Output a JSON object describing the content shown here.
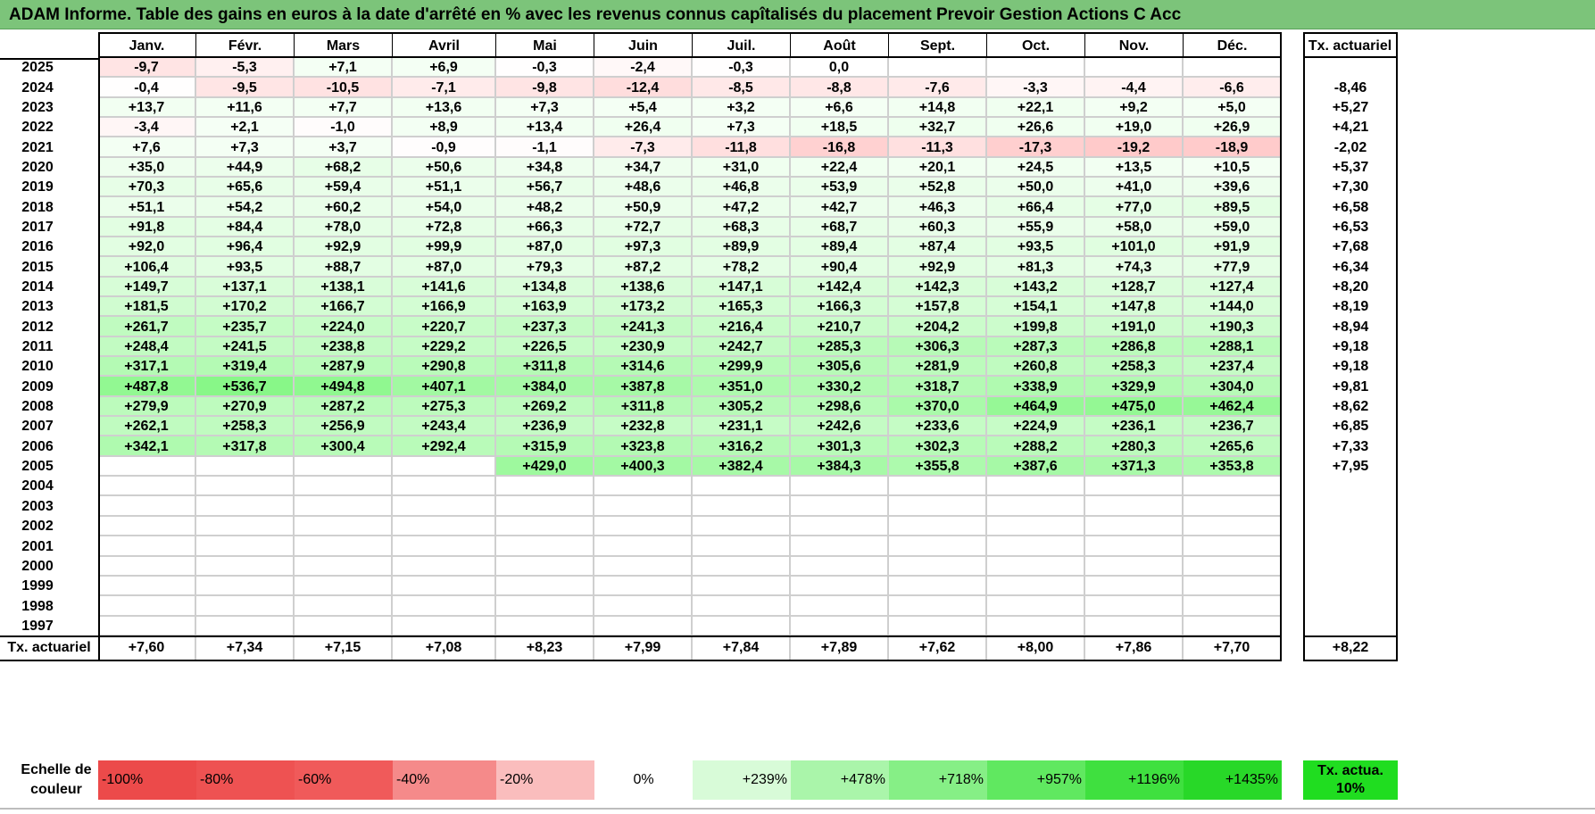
{
  "title": "ADAM Informe. Table des gains en euros à la date d'arrêté en % avec les revenus connus capîtalisés du placement Prevoir Gestion Actions C Acc",
  "colors": {
    "title_bg": "#7cc47a",
    "negative": "#f08080",
    "positive": "#4cd04c"
  },
  "table": {
    "months": [
      "Janv.",
      "Févr.",
      "Mars",
      "Avril",
      "Mai",
      "Juin",
      "Juil.",
      "Août",
      "Sept.",
      "Oct.",
      "Nov.",
      "Déc."
    ],
    "annual_header": "Tx. actuariel",
    "rows": [
      {
        "year": "2025",
        "values": [
          "-9,7",
          "-5,3",
          "+7,1",
          "+6,9",
          "-0,3",
          "-2,4",
          "-0,3",
          "0,0",
          "",
          "",
          "",
          ""
        ],
        "annual": ""
      },
      {
        "year": "2024",
        "values": [
          "-0,4",
          "-9,5",
          "-10,5",
          "-7,1",
          "-9,8",
          "-12,4",
          "-8,5",
          "-8,8",
          "-7,6",
          "-3,3",
          "-4,4",
          "-6,6"
        ],
        "annual": "-8,46"
      },
      {
        "year": "2023",
        "values": [
          "+13,7",
          "+11,6",
          "+7,7",
          "+13,6",
          "+7,3",
          "+5,4",
          "+3,2",
          "+6,6",
          "+14,8",
          "+22,1",
          "+9,2",
          "+5,0"
        ],
        "annual": "+5,27"
      },
      {
        "year": "2022",
        "values": [
          "-3,4",
          "+2,1",
          "-1,0",
          "+8,9",
          "+13,4",
          "+26,4",
          "+7,3",
          "+18,5",
          "+32,7",
          "+26,6",
          "+19,0",
          "+26,9"
        ],
        "annual": "+4,21"
      },
      {
        "year": "2021",
        "values": [
          "+7,6",
          "+7,3",
          "+3,7",
          "-0,9",
          "-1,1",
          "-7,3",
          "-11,8",
          "-16,8",
          "-11,3",
          "-17,3",
          "-19,2",
          "-18,9"
        ],
        "annual": "-2,02"
      },
      {
        "year": "2020",
        "values": [
          "+35,0",
          "+44,9",
          "+68,2",
          "+50,6",
          "+34,8",
          "+34,7",
          "+31,0",
          "+22,4",
          "+20,1",
          "+24,5",
          "+13,5",
          "+10,5"
        ],
        "annual": "+5,37"
      },
      {
        "year": "2019",
        "values": [
          "+70,3",
          "+65,6",
          "+59,4",
          "+51,1",
          "+56,7",
          "+48,6",
          "+46,8",
          "+53,9",
          "+52,8",
          "+50,0",
          "+41,0",
          "+39,6"
        ],
        "annual": "+7,30"
      },
      {
        "year": "2018",
        "values": [
          "+51,1",
          "+54,2",
          "+60,2",
          "+54,0",
          "+48,2",
          "+50,9",
          "+47,2",
          "+42,7",
          "+46,3",
          "+66,4",
          "+77,0",
          "+89,5"
        ],
        "annual": "+6,58"
      },
      {
        "year": "2017",
        "values": [
          "+91,8",
          "+84,4",
          "+78,0",
          "+72,8",
          "+66,3",
          "+72,7",
          "+68,3",
          "+68,7",
          "+60,3",
          "+55,9",
          "+58,0",
          "+59,0"
        ],
        "annual": "+6,53"
      },
      {
        "year": "2016",
        "values": [
          "+92,0",
          "+96,4",
          "+92,9",
          "+99,9",
          "+87,0",
          "+97,3",
          "+89,9",
          "+89,4",
          "+87,4",
          "+93,5",
          "+101,0",
          "+91,9"
        ],
        "annual": "+7,68"
      },
      {
        "year": "2015",
        "values": [
          "+106,4",
          "+93,5",
          "+88,7",
          "+87,0",
          "+79,3",
          "+87,2",
          "+78,2",
          "+90,4",
          "+92,9",
          "+81,3",
          "+74,3",
          "+77,9"
        ],
        "annual": "+6,34"
      },
      {
        "year": "2014",
        "values": [
          "+149,7",
          "+137,1",
          "+138,1",
          "+141,6",
          "+134,8",
          "+138,6",
          "+147,1",
          "+142,4",
          "+142,3",
          "+143,2",
          "+128,7",
          "+127,4"
        ],
        "annual": "+8,20"
      },
      {
        "year": "2013",
        "values": [
          "+181,5",
          "+170,2",
          "+166,7",
          "+166,9",
          "+163,9",
          "+173,2",
          "+165,3",
          "+166,3",
          "+157,8",
          "+154,1",
          "+147,8",
          "+144,0"
        ],
        "annual": "+8,19"
      },
      {
        "year": "2012",
        "values": [
          "+261,7",
          "+235,7",
          "+224,0",
          "+220,7",
          "+237,3",
          "+241,3",
          "+216,4",
          "+210,7",
          "+204,2",
          "+199,8",
          "+191,0",
          "+190,3"
        ],
        "annual": "+8,94"
      },
      {
        "year": "2011",
        "values": [
          "+248,4",
          "+241,5",
          "+238,8",
          "+229,2",
          "+226,5",
          "+230,9",
          "+242,7",
          "+285,3",
          "+306,3",
          "+287,3",
          "+286,8",
          "+288,1"
        ],
        "annual": "+9,18"
      },
      {
        "year": "2010",
        "values": [
          "+317,1",
          "+319,4",
          "+287,9",
          "+290,8",
          "+311,8",
          "+314,6",
          "+299,9",
          "+305,6",
          "+281,9",
          "+260,8",
          "+258,3",
          "+237,4"
        ],
        "annual": "+9,18"
      },
      {
        "year": "2009",
        "values": [
          "+487,8",
          "+536,7",
          "+494,8",
          "+407,1",
          "+384,0",
          "+387,8",
          "+351,0",
          "+330,2",
          "+318,7",
          "+338,9",
          "+329,9",
          "+304,0"
        ],
        "annual": "+9,81"
      },
      {
        "year": "2008",
        "values": [
          "+279,9",
          "+270,9",
          "+287,2",
          "+275,3",
          "+269,2",
          "+311,8",
          "+305,2",
          "+298,6",
          "+370,0",
          "+464,9",
          "+475,0",
          "+462,4"
        ],
        "annual": "+8,62"
      },
      {
        "year": "2007",
        "values": [
          "+262,1",
          "+258,3",
          "+256,9",
          "+243,4",
          "+236,9",
          "+232,8",
          "+231,1",
          "+242,6",
          "+233,6",
          "+224,9",
          "+236,1",
          "+236,7"
        ],
        "annual": "+6,85"
      },
      {
        "year": "2006",
        "values": [
          "+342,1",
          "+317,8",
          "+300,4",
          "+292,4",
          "+315,9",
          "+323,8",
          "+316,2",
          "+301,3",
          "+302,3",
          "+288,2",
          "+280,3",
          "+265,6"
        ],
        "annual": "+7,33"
      },
      {
        "year": "2005",
        "values": [
          "",
          "",
          "",
          "",
          "+429,0",
          "+400,3",
          "+382,4",
          "+384,3",
          "+355,8",
          "+387,6",
          "+371,3",
          "+353,8"
        ],
        "annual": "+7,95"
      },
      {
        "year": "2004",
        "values": [
          "",
          "",
          "",
          "",
          "",
          "",
          "",
          "",
          "",
          "",
          "",
          ""
        ],
        "annual": ""
      },
      {
        "year": "2003",
        "values": [
          "",
          "",
          "",
          "",
          "",
          "",
          "",
          "",
          "",
          "",
          "",
          ""
        ],
        "annual": ""
      },
      {
        "year": "2002",
        "values": [
          "",
          "",
          "",
          "",
          "",
          "",
          "",
          "",
          "",
          "",
          "",
          ""
        ],
        "annual": ""
      },
      {
        "year": "2001",
        "values": [
          "",
          "",
          "",
          "",
          "",
          "",
          "",
          "",
          "",
          "",
          "",
          ""
        ],
        "annual": ""
      },
      {
        "year": "2000",
        "values": [
          "",
          "",
          "",
          "",
          "",
          "",
          "",
          "",
          "",
          "",
          "",
          ""
        ],
        "annual": ""
      },
      {
        "year": "1999",
        "values": [
          "",
          "",
          "",
          "",
          "",
          "",
          "",
          "",
          "",
          "",
          "",
          ""
        ],
        "annual": ""
      },
      {
        "year": "1998",
        "values": [
          "",
          "",
          "",
          "",
          "",
          "",
          "",
          "",
          "",
          "",
          "",
          ""
        ],
        "annual": ""
      },
      {
        "year": "1997",
        "values": [
          "",
          "",
          "",
          "",
          "",
          "",
          "",
          "",
          "",
          "",
          "",
          ""
        ],
        "annual": ""
      }
    ],
    "footer": {
      "label": "Tx. actuariel",
      "values": [
        "+7,60",
        "+7,34",
        "+7,15",
        "+7,08",
        "+8,23",
        "+7,99",
        "+7,84",
        "+7,89",
        "+7,62",
        "+8,00",
        "+7,86",
        "+7,70"
      ],
      "annual": "+8,22"
    }
  },
  "scale": {
    "label": "Echelle de couleur",
    "cells": [
      {
        "text": "-100%",
        "color": "#ec4a4a",
        "align": "left"
      },
      {
        "text": "-80%",
        "color": "#ee5252",
        "align": "left"
      },
      {
        "text": "-60%",
        "color": "#f05a5a",
        "align": "left"
      },
      {
        "text": "-40%",
        "color": "#f58a8a",
        "align": "left"
      },
      {
        "text": "-20%",
        "color": "#fabdbd",
        "align": "left"
      },
      {
        "text": "0%",
        "color": "#ffffff",
        "align": "center"
      },
      {
        "text": "+239%",
        "color": "#d8fbd8",
        "align": "right"
      },
      {
        "text": "+478%",
        "color": "#aaf5aa",
        "align": "right"
      },
      {
        "text": "+718%",
        "color": "#86ef86",
        "align": "right"
      },
      {
        "text": "+957%",
        "color": "#60e860",
        "align": "right"
      },
      {
        "text": "+1196%",
        "color": "#3fe03f",
        "align": "right"
      },
      {
        "text": "+1435%",
        "color": "#28d828",
        "align": "right"
      }
    ],
    "annual_cell": {
      "text": "Tx. actua. 10%",
      "color": "#20dd20"
    }
  }
}
